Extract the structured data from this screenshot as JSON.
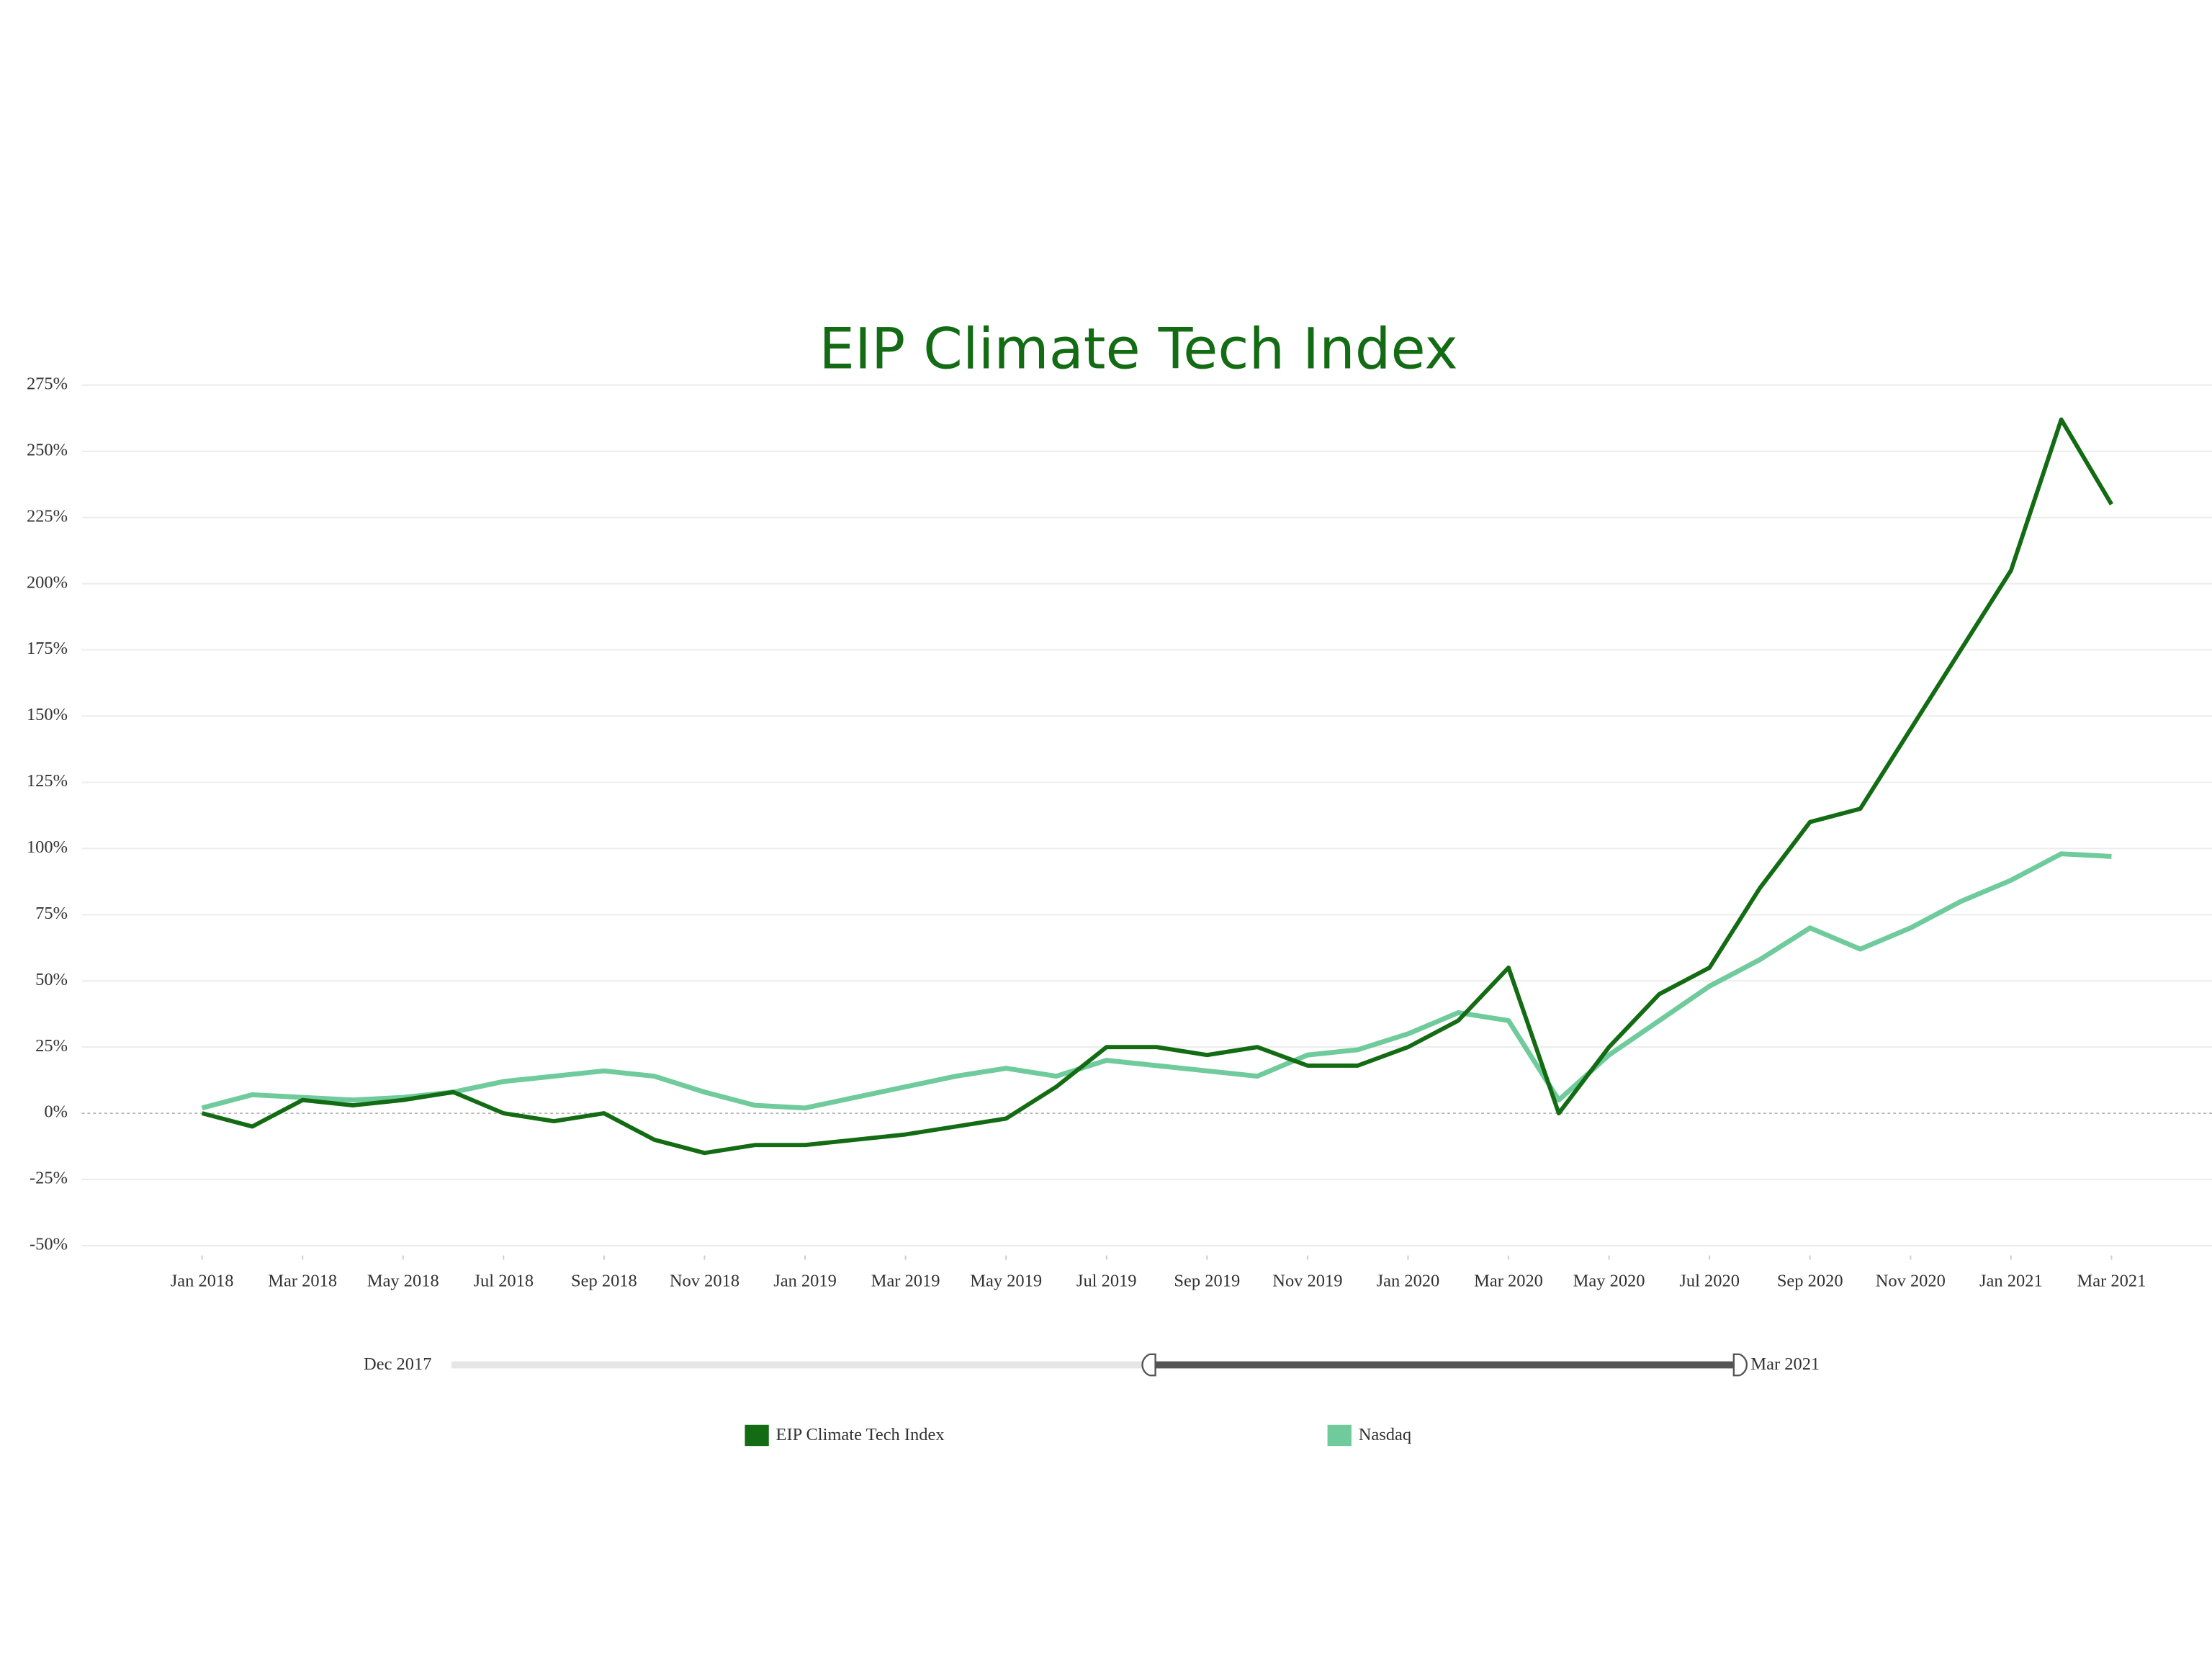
{
  "chart_data": {
    "type": "line",
    "title": "EIP Climate Tech Index",
    "x": [
      "2018-01",
      "2018-02",
      "2018-03",
      "2018-04",
      "2018-05",
      "2018-06",
      "2018-07",
      "2018-08",
      "2018-09",
      "2018-10",
      "2018-11",
      "2018-12",
      "2019-01",
      "2019-02",
      "2019-03",
      "2019-04",
      "2019-05",
      "2019-06",
      "2019-07",
      "2019-08",
      "2019-09",
      "2019-10",
      "2019-11",
      "2019-12",
      "2020-01",
      "2020-02",
      "2020-03",
      "2020-04",
      "2020-05",
      "2020-06",
      "2020-07",
      "2020-08",
      "2020-09",
      "2020-10",
      "2020-11",
      "2020-12",
      "2021-01",
      "2021-02",
      "2021-03"
    ],
    "series": [
      {
        "name": "EIP Climate Tech Index",
        "color": "#136b13",
        "values": [
          0,
          -5,
          5,
          3,
          5,
          8,
          0,
          -3,
          0,
          -10,
          -15,
          -12,
          -12,
          -10,
          -8,
          -5,
          -2,
          10,
          25,
          25,
          22,
          25,
          18,
          18,
          25,
          35,
          55,
          0,
          25,
          45,
          55,
          85,
          110,
          115,
          145,
          175,
          205,
          262,
          230
        ]
      },
      {
        "name": "Nasdaq",
        "color": "#6fcb9c",
        "values": [
          2,
          7,
          6,
          5,
          6,
          8,
          12,
          14,
          16,
          14,
          8,
          3,
          2,
          6,
          10,
          14,
          17,
          14,
          20,
          18,
          16,
          14,
          22,
          24,
          30,
          38,
          35,
          5,
          22,
          35,
          48,
          58,
          70,
          62,
          70,
          80,
          88,
          98,
          97
        ]
      }
    ],
    "xlim": [
      "2017-11",
      "2021-05"
    ],
    "xticks": [
      {
        "value": "2018-01",
        "label": "Jan 2018"
      },
      {
        "value": "2018-03",
        "label": "Mar 2018"
      },
      {
        "value": "2018-05",
        "label": "May 2018"
      },
      {
        "value": "2018-07",
        "label": "Jul 2018"
      },
      {
        "value": "2018-09",
        "label": "Sep 2018"
      },
      {
        "value": "2018-11",
        "label": "Nov 2018"
      },
      {
        "value": "2019-01",
        "label": "Jan 2019"
      },
      {
        "value": "2019-03",
        "label": "Mar 2019"
      },
      {
        "value": "2019-05",
        "label": "May 2019"
      },
      {
        "value": "2019-07",
        "label": "Jul 2019"
      },
      {
        "value": "2019-09",
        "label": "Sep 2019"
      },
      {
        "value": "2019-11",
        "label": "Nov 2019"
      },
      {
        "value": "2020-01",
        "label": "Jan 2020"
      },
      {
        "value": "2020-03",
        "label": "Mar 2020"
      },
      {
        "value": "2020-05",
        "label": "May 2020"
      },
      {
        "value": "2020-07",
        "label": "Jul 2020"
      },
      {
        "value": "2020-09",
        "label": "Sep 2020"
      },
      {
        "value": "2020-11",
        "label": "Nov 2020"
      },
      {
        "value": "2021-01",
        "label": "Jan 2021"
      },
      {
        "value": "2021-03",
        "label": "Mar 2021"
      }
    ],
    "ylim": [
      -50,
      275
    ],
    "yticks": [
      {
        "value": -50,
        "label": "-50%"
      },
      {
        "value": -25,
        "label": "-25%"
      },
      {
        "value": 0,
        "label": "0%"
      },
      {
        "value": 25,
        "label": "25%"
      },
      {
        "value": 50,
        "label": "50%"
      },
      {
        "value": 75,
        "label": "75%"
      },
      {
        "value": 100,
        "label": "100%"
      },
      {
        "value": 125,
        "label": "125%"
      },
      {
        "value": 150,
        "label": "150%"
      },
      {
        "value": 175,
        "label": "175%"
      },
      {
        "value": 200,
        "label": "200%"
      },
      {
        "value": 225,
        "label": "225%"
      },
      {
        "value": 250,
        "label": "250%"
      },
      {
        "value": 275,
        "label": "275%"
      }
    ],
    "grid": true,
    "range_slider": {
      "start_label": "Dec 2017",
      "end_label": "Mar 2021"
    }
  }
}
